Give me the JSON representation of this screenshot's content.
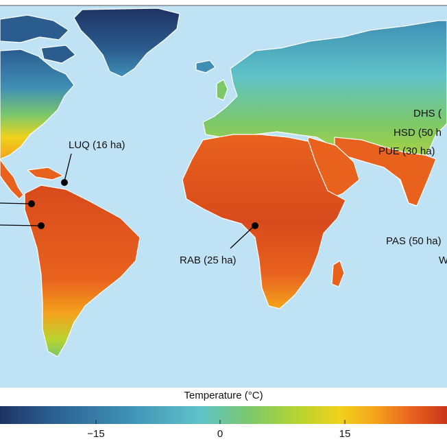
{
  "sites": [
    {
      "label": "LUQ (16 ha)"
    },
    {
      "label": ""
    },
    {
      "label": ""
    },
    {
      "label": "RAB (25 ha)"
    },
    {
      "label": "DHS ("
    },
    {
      "label": "HSD (50 h"
    },
    {
      "label": "PUE (30 ha)"
    },
    {
      "label": "PAS (50 ha)"
    },
    {
      "label": "W"
    }
  ],
  "legend": {
    "title": "Temperature (°C)",
    "ticks": [
      "−15",
      "0",
      "15"
    ],
    "colors": [
      "#1e3363",
      "#2a5d8e",
      "#3f8fb5",
      "#5fc3c7",
      "#7cc86a",
      "#b8d431",
      "#efd21b",
      "#f4a31c",
      "#e8621e",
      "#c8361a"
    ]
  },
  "colors": {
    "ocean": "#bfe2f5",
    "border": "#ffffff"
  }
}
